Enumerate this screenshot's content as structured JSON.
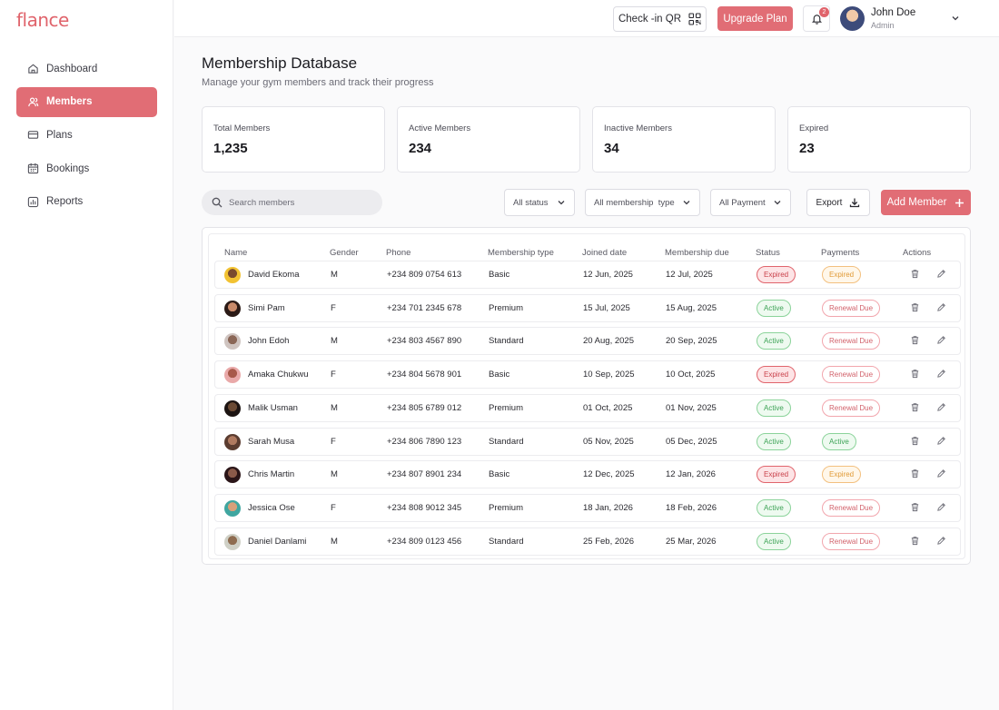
{
  "app": {
    "logo": "flance"
  },
  "sidebar": {
    "items": [
      {
        "label": "Dashboard",
        "icon": "home-icon",
        "active": false
      },
      {
        "label": "Members",
        "icon": "users-icon",
        "active": true
      },
      {
        "label": "Plans",
        "icon": "card-icon",
        "active": false
      },
      {
        "label": "Bookings",
        "icon": "calendar-icon",
        "active": false
      },
      {
        "label": "Reports",
        "icon": "report-icon",
        "active": false
      }
    ]
  },
  "header": {
    "checkin_label": "Check -in QR",
    "upgrade_label": "Upgrade Plan",
    "notification_count": "2",
    "user": {
      "name": "John Doe",
      "role": "Admin"
    }
  },
  "page": {
    "title": "Membership Database",
    "subtitle": "Manage your gym members and track their progress"
  },
  "stats": [
    {
      "label": "Total Members",
      "value": "1,235"
    },
    {
      "label": "Active Members",
      "value": "234"
    },
    {
      "label": "Inactive Members",
      "value": "34"
    },
    {
      "label": "Expired",
      "value": "23"
    }
  ],
  "toolbar": {
    "search_placeholder": "Search members",
    "filters": [
      "All status",
      "All membership  type",
      "All Payment"
    ],
    "export_label": "Export",
    "add_label": "Add Member"
  },
  "table": {
    "headers": [
      "Name",
      "Gender",
      "Phone",
      "Membership type",
      "Joined date",
      "Membership due",
      "Status",
      "Payments",
      "Actions"
    ],
    "rows": [
      {
        "name": "David Ekoma",
        "gender": "M",
        "phone": "+234 809 0754 613",
        "type": "Basic",
        "joined": "12 Jun, 2025",
        "due": "12 Jul, 2025",
        "status": "Expired",
        "payment": "Expired"
      },
      {
        "name": "Simi Pam",
        "gender": "F",
        "phone": "+234 701 2345 678",
        "type": "Premium",
        "joined": "15 Jul, 2025",
        "due": "15 Aug, 2025",
        "status": "Active",
        "payment": "Renewal Due"
      },
      {
        "name": "John Edoh",
        "gender": "M",
        "phone": "+234 803 4567 890",
        "type": "Standard",
        "joined": "20 Aug, 2025",
        "due": "20 Sep, 2025",
        "status": "Active",
        "payment": "Renewal Due"
      },
      {
        "name": "Amaka Chukwu",
        "gender": "F",
        "phone": "+234 804 5678 901",
        "type": "Basic",
        "joined": "10 Sep, 2025",
        "due": "10 Oct, 2025",
        "status": "Expired",
        "payment": "Renewal Due"
      },
      {
        "name": "Malik Usman",
        "gender": "M",
        "phone": "+234 805 6789 012",
        "type": "Premium",
        "joined": "01 Oct, 2025",
        "due": "01 Nov, 2025",
        "status": "Active",
        "payment": "Renewal Due"
      },
      {
        "name": "Sarah Musa",
        "gender": "F",
        "phone": "+234 806 7890 123",
        "type": "Standard",
        "joined": "05 Nov, 2025",
        "due": "05 Dec, 2025",
        "status": "Active",
        "payment": "Active"
      },
      {
        "name": "Chris Martin",
        "gender": "M",
        "phone": "+234 807 8901 234",
        "type": "Basic",
        "joined": "12 Dec, 2025",
        "due": "12 Jan, 2026",
        "status": "Expired",
        "payment": "Expired"
      },
      {
        "name": "Jessica Ose",
        "gender": "F",
        "phone": "+234 808 9012 345",
        "type": "Premium",
        "joined": "18 Jan, 2026",
        "due": "18 Feb, 2026",
        "status": "Active",
        "payment": "Renewal Due"
      },
      {
        "name": "Daniel Danlami",
        "gender": "M",
        "phone": "+234 809 0123 456",
        "type": "Standard",
        "joined": "25 Feb, 2026",
        "due": "25 Mar, 2026",
        "status": "Active",
        "payment": "Renewal Due"
      }
    ]
  },
  "colors": {
    "accent": "#e16d75",
    "active": "#3da356",
    "expired": "#c9404a",
    "warning": "#e09a36"
  }
}
